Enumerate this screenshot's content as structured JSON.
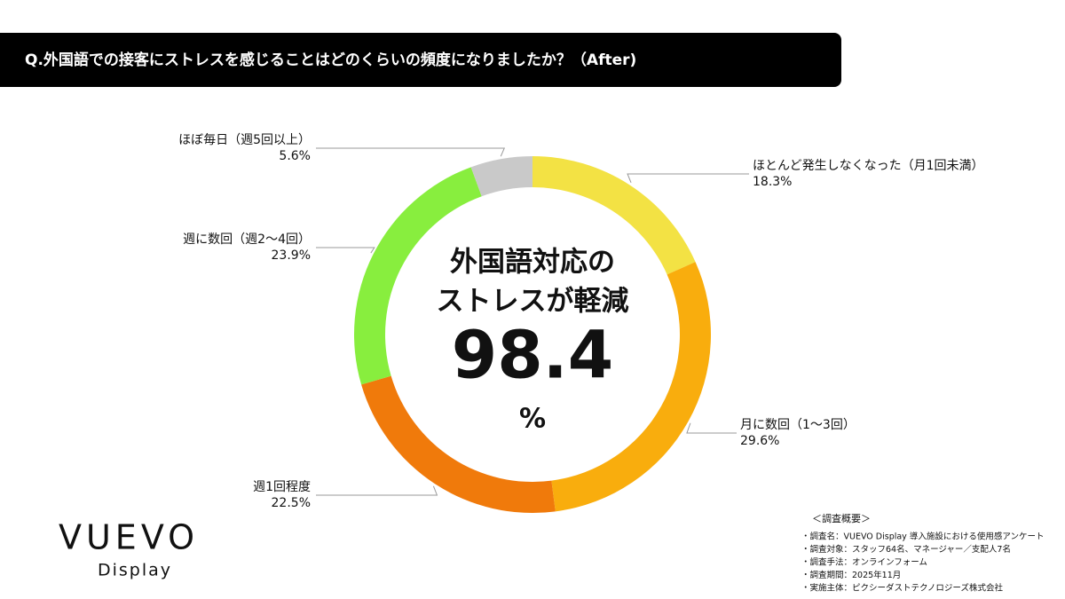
{
  "chart_data": {
    "type": "donut",
    "title": "Q.外国語での接客にストレスを感じることはどのくらいの頻度になりましたか？（After)",
    "categories": [
      "ほとんど発生しなくなった（月1回未満）",
      "月に数回（1〜3回）",
      "週1回程度",
      "週に数回（週2〜4回）",
      "ほぼ毎日（週5回以上）"
    ],
    "values": [
      18.3,
      29.6,
      22.5,
      23.9,
      5.6
    ],
    "value_labels": [
      "18.3%",
      "29.6%",
      "22.5%",
      "23.9%",
      "5.6%"
    ],
    "colors": [
      "#f3e244",
      "#f9ad0d",
      "#f07a0b",
      "#88ee3e",
      "#c9c9c9"
    ],
    "center_text": [
      "外国語対応の",
      "ストレスが軽減"
    ],
    "center_value": 98.4,
    "center_unit": "%"
  },
  "logo": {
    "name": "VUEVO",
    "sub": "Display"
  },
  "notes": {
    "heading": "＜調査概要＞",
    "items": [
      "・調査名：VUEVO Display 導入施設における使用感アンケート",
      "・調査対象：スタッフ64名、マネージャー／支配人7名",
      "・調査手法：オンラインフォーム",
      "・調査期間：2025年11月",
      "・実施主体：ピクシーダストテクノロジーズ株式会社"
    ]
  }
}
